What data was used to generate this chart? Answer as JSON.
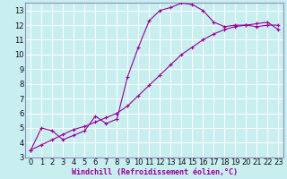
{
  "xlabel": "Windchill (Refroidissement éolien,°C)",
  "bg_color": "#c8eef0",
  "line_color": "#990099",
  "grid_color": "#ffffff",
  "spine_color": "#9090bb",
  "xlim": [
    -0.5,
    23.5
  ],
  "ylim": [
    3,
    13.5
  ],
  "xticks": [
    0,
    1,
    2,
    3,
    4,
    5,
    6,
    7,
    8,
    9,
    10,
    11,
    12,
    13,
    14,
    15,
    16,
    17,
    18,
    19,
    20,
    21,
    22,
    23
  ],
  "yticks": [
    3,
    4,
    5,
    6,
    7,
    8,
    9,
    10,
    11,
    12,
    13
  ],
  "curve1_x": [
    0,
    1,
    2,
    3,
    4,
    5,
    6,
    7,
    8,
    9,
    10,
    11,
    12,
    13,
    14,
    15,
    16,
    17,
    18,
    19,
    20,
    21,
    22,
    23
  ],
  "curve1_y": [
    3.5,
    5.0,
    4.8,
    4.2,
    4.5,
    4.8,
    5.8,
    5.3,
    5.6,
    8.5,
    10.5,
    12.3,
    13.0,
    13.2,
    13.5,
    13.4,
    13.0,
    12.2,
    11.9,
    12.0,
    12.0,
    11.9,
    12.0,
    12.0
  ],
  "curve2_x": [
    0,
    1,
    2,
    3,
    4,
    5,
    6,
    7,
    8,
    9,
    10,
    11,
    12,
    13,
    14,
    15,
    16,
    17,
    18,
    19,
    20,
    21,
    22,
    23
  ],
  "curve2_y": [
    3.5,
    3.85,
    4.2,
    4.55,
    4.9,
    5.1,
    5.4,
    5.7,
    6.0,
    6.5,
    7.2,
    7.9,
    8.6,
    9.3,
    10.0,
    10.5,
    11.0,
    11.4,
    11.7,
    11.9,
    12.0,
    12.1,
    12.2,
    11.7
  ],
  "tick_fontsize": 6,
  "xlabel_fontsize": 6
}
